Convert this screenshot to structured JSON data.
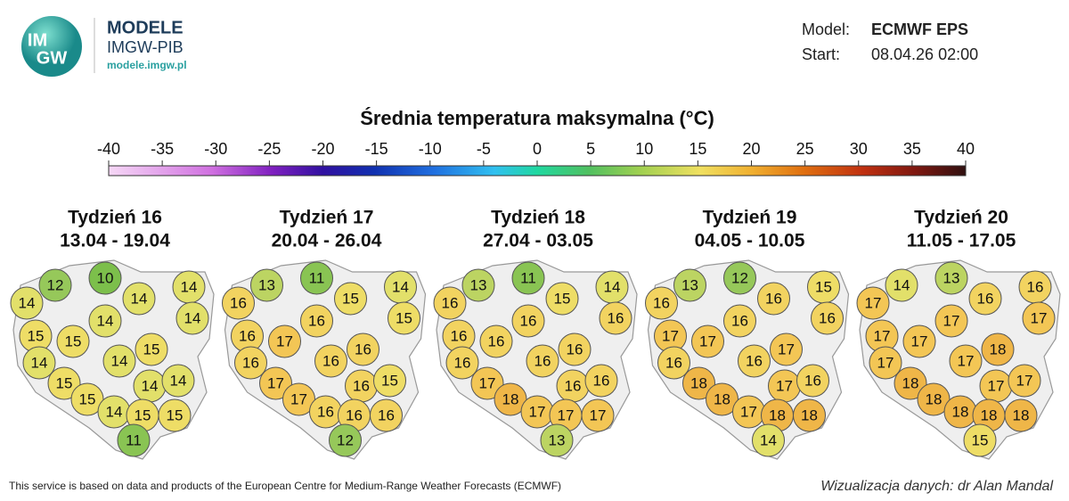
{
  "header": {
    "logo": [
      "IM",
      "GW"
    ],
    "brand": "MODELE",
    "org": "IMGW-PIB",
    "url": "modele.imgw.pl",
    "model_label": "Model:",
    "model": "ECMWF EPS",
    "start_label": "Start:",
    "start": "08.04.26 02:00"
  },
  "colorbar": {
    "title": "Średnia temperatura maksymalna (°C)",
    "lim": [
      -40,
      40
    ],
    "ticks": [
      -40,
      -35,
      -30,
      -25,
      -20,
      -15,
      -10,
      -5,
      0,
      5,
      10,
      15,
      20,
      25,
      30,
      35,
      40
    ]
  },
  "panels": [
    {
      "title": "Tydzień 16",
      "dates": "13.04 - 19.04",
      "values": [
        12,
        10,
        14,
        14,
        14,
        14,
        14,
        15,
        15,
        15,
        14,
        14,
        15,
        14,
        14,
        15,
        14,
        15,
        15,
        11
      ]
    },
    {
      "title": "Tydzień 17",
      "dates": "20.04 - 26.04",
      "values": [
        13,
        11,
        16,
        15,
        14,
        16,
        15,
        16,
        17,
        16,
        16,
        16,
        17,
        16,
        15,
        17,
        16,
        16,
        16,
        12
      ]
    },
    {
      "title": "Tydzień 18",
      "dates": "27.04 - 03.05",
      "values": [
        13,
        11,
        16,
        15,
        14,
        16,
        16,
        16,
        16,
        16,
        16,
        16,
        17,
        16,
        16,
        18,
        17,
        17,
        17,
        13
      ]
    },
    {
      "title": "Tydzień 19",
      "dates": "04.05 - 10.05",
      "values": [
        13,
        12,
        16,
        16,
        15,
        16,
        16,
        17,
        17,
        17,
        16,
        16,
        18,
        17,
        16,
        18,
        17,
        18,
        18,
        14
      ]
    },
    {
      "title": "Tydzień 20",
      "dates": "11.05 - 17.05",
      "values": [
        14,
        13,
        17,
        16,
        16,
        17,
        17,
        17,
        17,
        18,
        17,
        17,
        18,
        17,
        17,
        18,
        18,
        18,
        18,
        15
      ]
    }
  ],
  "footer": {
    "source": "This service is based on data and products of the European Centre for Medium-Range Weather Forecasts (ECMWF)",
    "credit": "Wizualizacja danych: dr Alan Mandal"
  }
}
